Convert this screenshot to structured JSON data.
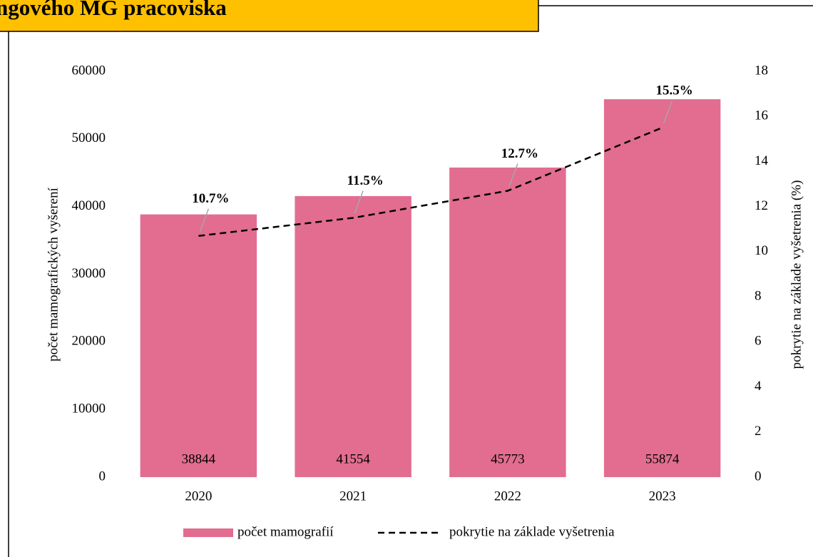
{
  "chart_data": {
    "type": "bar",
    "title": "ngového MG pracoviska",
    "categories": [
      "2020",
      "2021",
      "2022",
      "2023"
    ],
    "series": [
      {
        "name": "počet mamografií",
        "type": "bar",
        "color": "#e26d91",
        "values": [
          38844,
          41554,
          45773,
          55874
        ]
      },
      {
        "name": "pokrytie na základe vyšetrenia",
        "type": "line",
        "axis": "y2",
        "color": "#000000",
        "values": [
          10.7,
          11.5,
          12.7,
          15.5
        ],
        "value_labels": [
          "10.7%",
          "11.5%",
          "12.7%",
          "15.5%"
        ]
      }
    ],
    "ylabel": "počet mamografických vyšerení",
    "y2label": "pokrytie na základe vyšetrenia (%)",
    "ylim": [
      0,
      60000
    ],
    "yticks": [
      0,
      10000,
      20000,
      30000,
      40000,
      50000,
      60000
    ],
    "y2lim": [
      0,
      18
    ],
    "y2ticks": [
      0,
      2,
      4,
      6,
      8,
      10,
      12,
      14,
      16,
      18
    ]
  }
}
